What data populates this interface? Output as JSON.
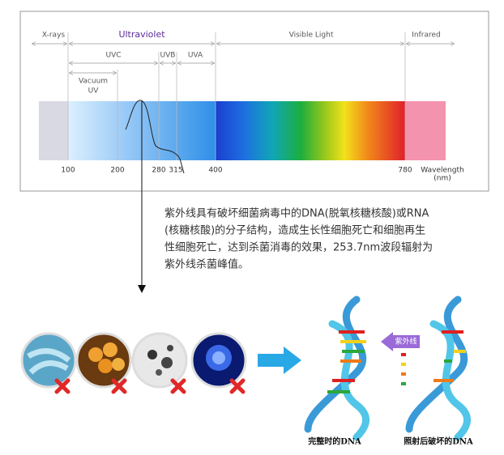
{
  "spectrum": {
    "regions": [
      "X-rays",
      "Ultraviolet",
      "Visible Light",
      "Infrared"
    ],
    "uv_bands": [
      "UVC",
      "UVB",
      "UVA"
    ],
    "vacuum_uv": [
      "Vacuum",
      "UV"
    ],
    "ticks": [
      100,
      200,
      280,
      315,
      400,
      780
    ],
    "axis_label": [
      "Wavelength",
      "(nm)"
    ]
  },
  "description": [
    "紫外线具有破坏细菌病毒中的DNA(脱氧核糖核酸)或RNA",
    "(核糖核酸)的分子结构，造成生长性细胞死亡和细胞再生",
    "性细胞死亡，达到杀菌消毒的效果，253.7nm波段辐射为",
    "紫外线杀菌峰值。"
  ],
  "dna": {
    "arrow_label": "紫外线",
    "captions": [
      "完整时的DNA",
      "照射后破坏的DNA"
    ]
  }
}
